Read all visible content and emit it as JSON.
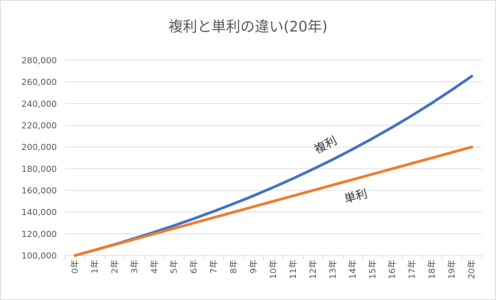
{
  "chart_data": {
    "type": "line",
    "title": "複利と単利の違い(20年)",
    "xlabel": "",
    "ylabel": "",
    "categories": [
      "0年",
      "1年",
      "2年",
      "3年",
      "4年",
      "5年",
      "6年",
      "7年",
      "8年",
      "9年",
      "10年",
      "11年",
      "12年",
      "13年",
      "14年",
      "15年",
      "16年",
      "17年",
      "18年",
      "19年",
      "20年"
    ],
    "ylim": [
      100000,
      280000
    ],
    "yticks": [
      100000,
      120000,
      140000,
      160000,
      180000,
      200000,
      220000,
      240000,
      260000,
      280000
    ],
    "ytick_labels": [
      "100,000",
      "120,000",
      "140,000",
      "160,000",
      "180,000",
      "200,000",
      "220,000",
      "240,000",
      "260,000",
      "280,000"
    ],
    "grid": true,
    "legend": "none",
    "series": [
      {
        "color": "#4472c4",
        "values": [
          100000,
          105000,
          110250,
          115763,
          121551,
          127628,
          134010,
          140710,
          147746,
          155133,
          162889,
          171034,
          179586,
          188565,
          197993,
          207893,
          218287,
          229202,
          240662,
          252695,
          265330
        ]
      },
      {
        "color": "#ed7d31",
        "values": [
          100000,
          105000,
          110000,
          115000,
          120000,
          125000,
          130000,
          135000,
          140000,
          145000,
          150000,
          155000,
          160000,
          165000,
          170000,
          175000,
          180000,
          185000,
          190000,
          195000,
          200000
        ]
      }
    ],
    "annotations": [
      {
        "text": "複利",
        "series": 0,
        "at": 13
      },
      {
        "text": "単利",
        "series": 1,
        "at": 14
      }
    ],
    "colors": {
      "gridline": "#d9d9d9",
      "axis": "#d9d9d9",
      "text": "#595959"
    }
  }
}
